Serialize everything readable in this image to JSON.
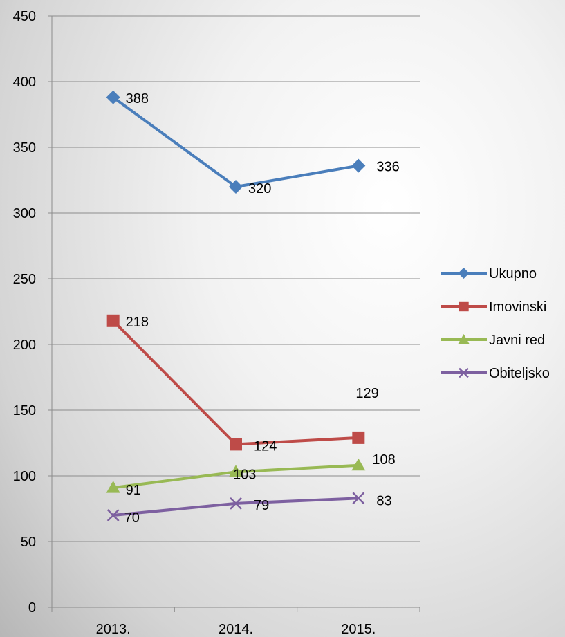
{
  "chart_data": {
    "type": "line",
    "categories": [
      "2013.",
      "2014.",
      "2015."
    ],
    "ylim": [
      0,
      450
    ],
    "yticks": [
      0,
      50,
      100,
      150,
      200,
      250,
      300,
      350,
      400,
      450
    ],
    "grid": true,
    "legend_position": "right",
    "series": [
      {
        "name": "Ukupno",
        "values": [
          388,
          320,
          336
        ],
        "color": "#4a7ebb",
        "marker": "diamond",
        "labels": [
          "388",
          "320",
          "336"
        ]
      },
      {
        "name": "Imovinski",
        "values": [
          218,
          124,
          129
        ],
        "color": "#be4b48",
        "marker": "square",
        "labels": [
          "218",
          "124",
          "129"
        ]
      },
      {
        "name": "Javni red",
        "values": [
          91,
          103,
          108
        ],
        "color": "#98b954",
        "marker": "triangle",
        "labels": [
          "91",
          "103",
          "108"
        ]
      },
      {
        "name": "Obiteljsko",
        "values": [
          70,
          79,
          83
        ],
        "color": "#7d60a0",
        "marker": "x",
        "labels": [
          "70",
          "79",
          "83"
        ]
      }
    ]
  }
}
